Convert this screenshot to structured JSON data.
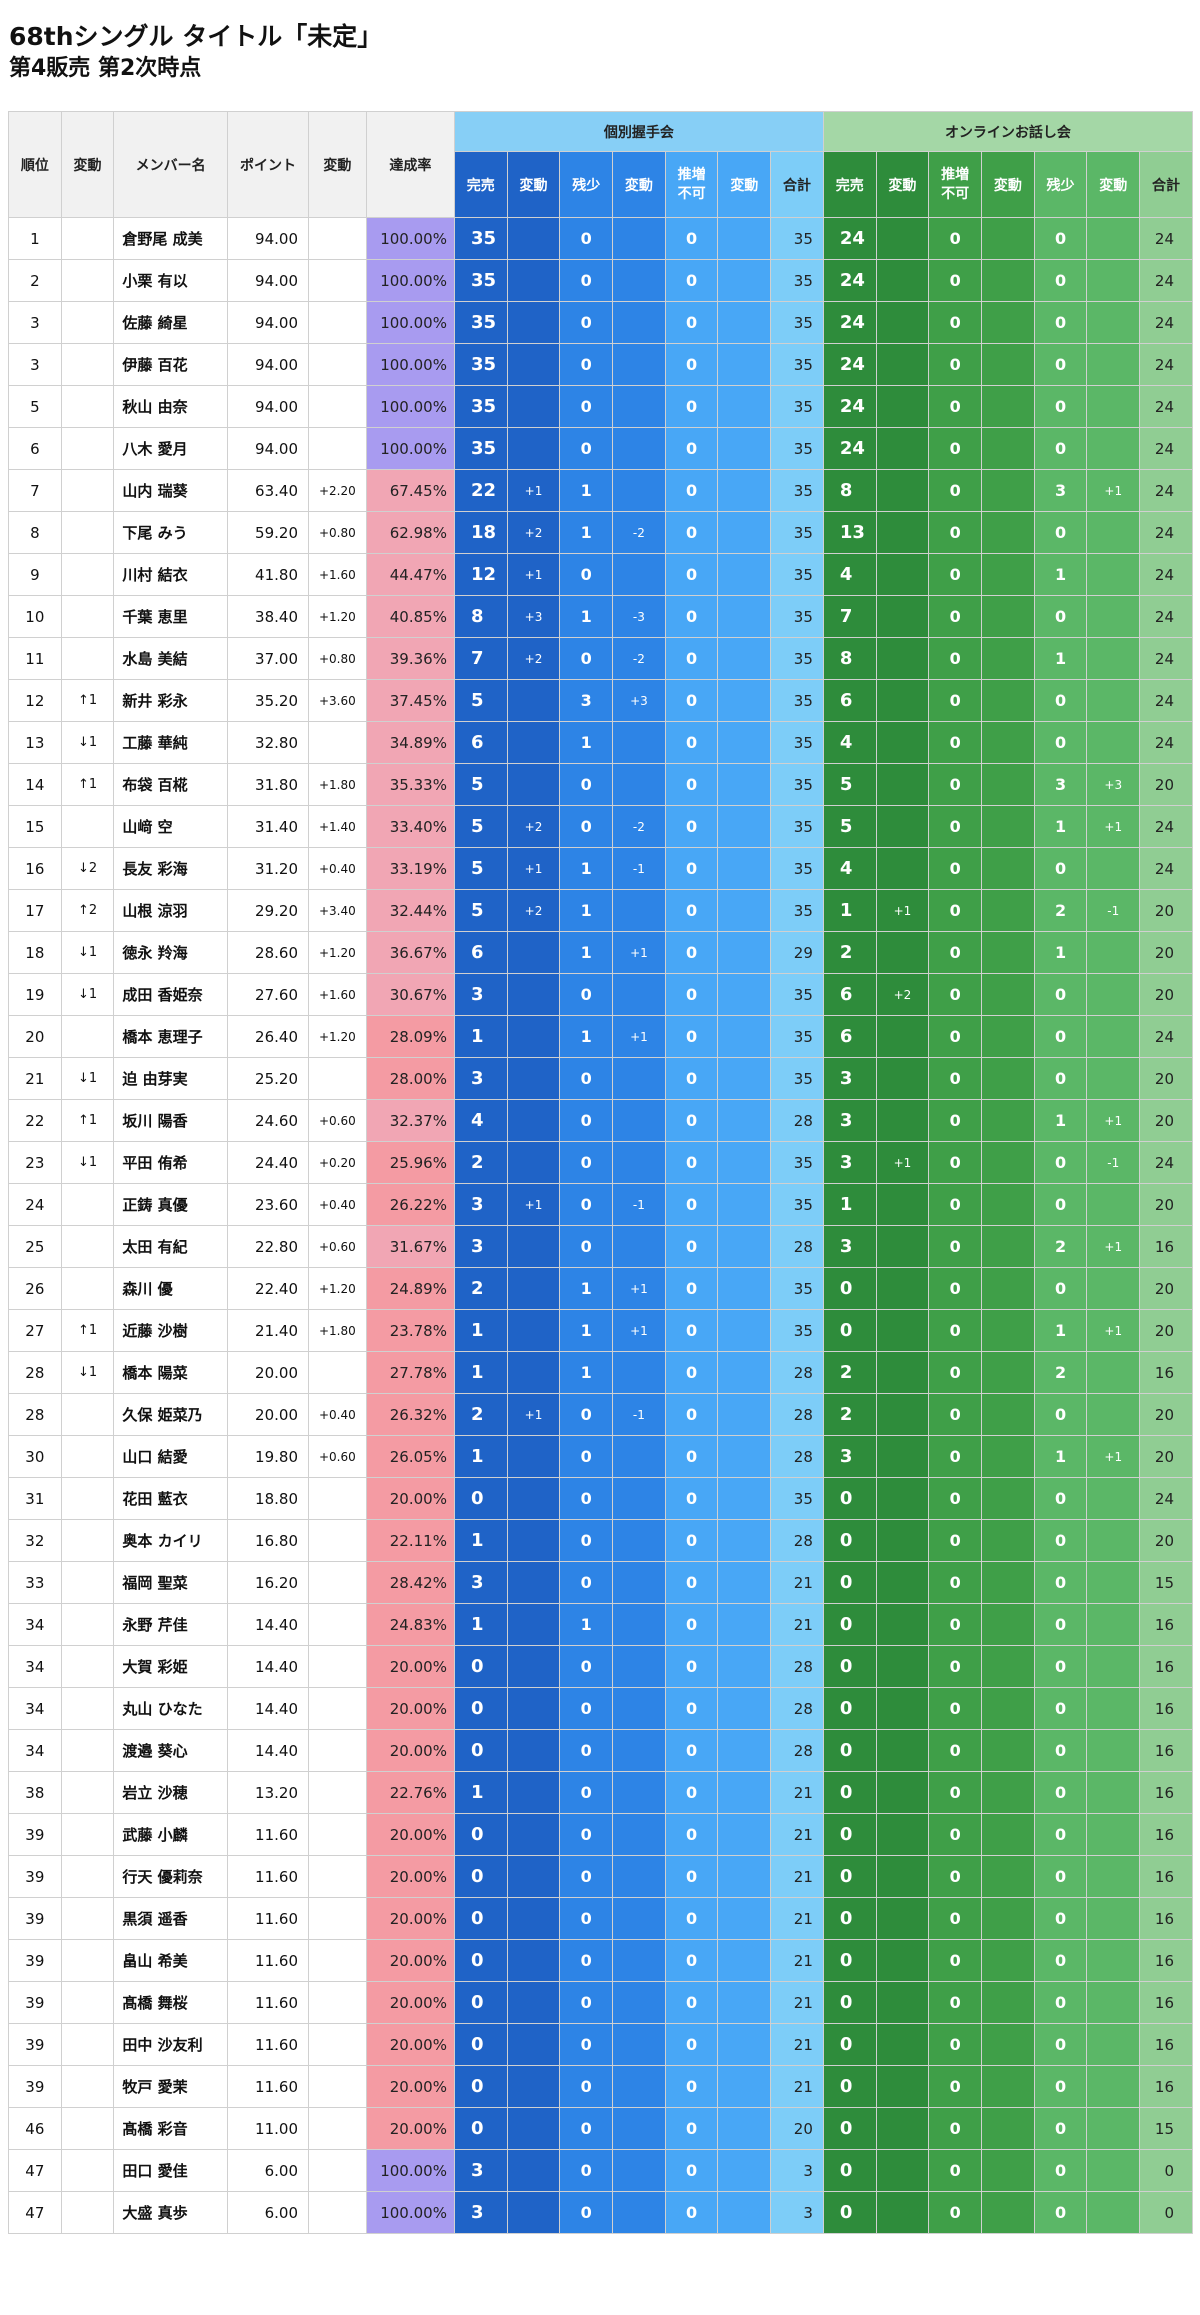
{
  "page": {
    "title": "68thシングル タイトル「未定」",
    "subtitle": "第4販売 第2次時点"
  },
  "table": {
    "groups": {
      "handshake": "個別握手会",
      "online": "オンラインお話し会"
    },
    "headers": {
      "rank": "順位",
      "rank_change": "変動",
      "member": "メンバー名",
      "points": "ポイント",
      "points_change": "変動",
      "rate": "達成率",
      "hs_sold": "完売",
      "hs_sold_change": "変動",
      "hs_few": "残少",
      "hs_few_change": "変動",
      "hs_na": "推増\n不可",
      "hs_na_change": "変動",
      "hs_total": "合計",
      "ol_sold": "完売",
      "ol_sold_change": "変動",
      "ol_na": "推増\n不可",
      "ol_na_change": "変動",
      "ol_few": "残少",
      "ol_few_change": "変動",
      "ol_total": "合計"
    },
    "colors": {
      "hs_dark": "#1f63c7",
      "hs_mid": "#2d84e6",
      "hs_light": "#48a7f6",
      "hs_total": "#7dcdf8",
      "ol_dark": "#2e8c3b",
      "ol_mid": "#3f9f48",
      "ol_light": "#5bb767",
      "ol_total": "#90cd93",
      "rate_full": "#a89bf0",
      "rate_mid": "#f1a6b4",
      "rate_low": "#f49ba3"
    },
    "columns": [
      "rank",
      "rank_change",
      "member",
      "points",
      "points_change",
      "rate",
      "hs_sold",
      "hs_sold_change",
      "hs_few",
      "hs_few_change",
      "hs_na",
      "hs_na_change",
      "hs_total",
      "ol_sold",
      "ol_sold_change",
      "ol_na",
      "ol_na_change",
      "ol_few",
      "ol_few_change",
      "ol_total"
    ],
    "rows": [
      [
        "1",
        "",
        "倉野尾 成美",
        "94.00",
        "",
        "100.00%",
        "35",
        "",
        "0",
        "",
        "0",
        "",
        "35",
        "24",
        "",
        "0",
        "",
        "0",
        "",
        "24"
      ],
      [
        "2",
        "",
        "小栗 有以",
        "94.00",
        "",
        "100.00%",
        "35",
        "",
        "0",
        "",
        "0",
        "",
        "35",
        "24",
        "",
        "0",
        "",
        "0",
        "",
        "24"
      ],
      [
        "3",
        "",
        "佐藤 綺星",
        "94.00",
        "",
        "100.00%",
        "35",
        "",
        "0",
        "",
        "0",
        "",
        "35",
        "24",
        "",
        "0",
        "",
        "0",
        "",
        "24"
      ],
      [
        "3",
        "",
        "伊藤 百花",
        "94.00",
        "",
        "100.00%",
        "35",
        "",
        "0",
        "",
        "0",
        "",
        "35",
        "24",
        "",
        "0",
        "",
        "0",
        "",
        "24"
      ],
      [
        "5",
        "",
        "秋山 由奈",
        "94.00",
        "",
        "100.00%",
        "35",
        "",
        "0",
        "",
        "0",
        "",
        "35",
        "24",
        "",
        "0",
        "",
        "0",
        "",
        "24"
      ],
      [
        "6",
        "",
        "八木 愛月",
        "94.00",
        "",
        "100.00%",
        "35",
        "",
        "0",
        "",
        "0",
        "",
        "35",
        "24",
        "",
        "0",
        "",
        "0",
        "",
        "24"
      ],
      [
        "7",
        "",
        "山内 瑞葵",
        "63.40",
        "+2.20",
        "67.45%",
        "22",
        "+1",
        "1",
        "",
        "0",
        "",
        "35",
        "8",
        "",
        "0",
        "",
        "3",
        "+1",
        "24"
      ],
      [
        "8",
        "",
        "下尾 みう",
        "59.20",
        "+0.80",
        "62.98%",
        "18",
        "+2",
        "1",
        "-2",
        "0",
        "",
        "35",
        "13",
        "",
        "0",
        "",
        "0",
        "",
        "24"
      ],
      [
        "9",
        "",
        "川村 結衣",
        "41.80",
        "+1.60",
        "44.47%",
        "12",
        "+1",
        "0",
        "",
        "0",
        "",
        "35",
        "4",
        "",
        "0",
        "",
        "1",
        "",
        "24"
      ],
      [
        "10",
        "",
        "千葉 恵里",
        "38.40",
        "+1.20",
        "40.85%",
        "8",
        "+3",
        "1",
        "-3",
        "0",
        "",
        "35",
        "7",
        "",
        "0",
        "",
        "0",
        "",
        "24"
      ],
      [
        "11",
        "",
        "水島 美結",
        "37.00",
        "+0.80",
        "39.36%",
        "7",
        "+2",
        "0",
        "-2",
        "0",
        "",
        "35",
        "8",
        "",
        "0",
        "",
        "1",
        "",
        "24"
      ],
      [
        "12",
        "↑1",
        "新井 彩永",
        "35.20",
        "+3.60",
        "37.45%",
        "5",
        "",
        "3",
        "+3",
        "0",
        "",
        "35",
        "6",
        "",
        "0",
        "",
        "0",
        "",
        "24"
      ],
      [
        "13",
        "↓1",
        "工藤 華純",
        "32.80",
        "",
        "34.89%",
        "6",
        "",
        "1",
        "",
        "0",
        "",
        "35",
        "4",
        "",
        "0",
        "",
        "0",
        "",
        "24"
      ],
      [
        "14",
        "↑1",
        "布袋 百椛",
        "31.80",
        "+1.80",
        "35.33%",
        "5",
        "",
        "0",
        "",
        "0",
        "",
        "35",
        "5",
        "",
        "0",
        "",
        "3",
        "+3",
        "20"
      ],
      [
        "15",
        "",
        "山﨑 空",
        "31.40",
        "+1.40",
        "33.40%",
        "5",
        "+2",
        "0",
        "-2",
        "0",
        "",
        "35",
        "5",
        "",
        "0",
        "",
        "1",
        "+1",
        "24"
      ],
      [
        "16",
        "↓2",
        "長友 彩海",
        "31.20",
        "+0.40",
        "33.19%",
        "5",
        "+1",
        "1",
        "-1",
        "0",
        "",
        "35",
        "4",
        "",
        "0",
        "",
        "0",
        "",
        "24"
      ],
      [
        "17",
        "↑2",
        "山根 涼羽",
        "29.20",
        "+3.40",
        "32.44%",
        "5",
        "+2",
        "1",
        "",
        "0",
        "",
        "35",
        "1",
        "+1",
        "0",
        "",
        "2",
        "-1",
        "20"
      ],
      [
        "18",
        "↓1",
        "徳永 羚海",
        "28.60",
        "+1.20",
        "36.67%",
        "6",
        "",
        "1",
        "+1",
        "0",
        "",
        "29",
        "2",
        "",
        "0",
        "",
        "1",
        "",
        "20"
      ],
      [
        "19",
        "↓1",
        "成田 香姫奈",
        "27.60",
        "+1.60",
        "30.67%",
        "3",
        "",
        "0",
        "",
        "0",
        "",
        "35",
        "6",
        "+2",
        "0",
        "",
        "0",
        "",
        "20"
      ],
      [
        "20",
        "",
        "橋本 恵理子",
        "26.40",
        "+1.20",
        "28.09%",
        "1",
        "",
        "1",
        "+1",
        "0",
        "",
        "35",
        "6",
        "",
        "0",
        "",
        "0",
        "",
        "24"
      ],
      [
        "21",
        "↓1",
        "迫 由芽実",
        "25.20",
        "",
        "28.00%",
        "3",
        "",
        "0",
        "",
        "0",
        "",
        "35",
        "3",
        "",
        "0",
        "",
        "0",
        "",
        "20"
      ],
      [
        "22",
        "↑1",
        "坂川 陽香",
        "24.60",
        "+0.60",
        "32.37%",
        "4",
        "",
        "0",
        "",
        "0",
        "",
        "28",
        "3",
        "",
        "0",
        "",
        "1",
        "+1",
        "20"
      ],
      [
        "23",
        "↓1",
        "平田 侑希",
        "24.40",
        "+0.20",
        "25.96%",
        "2",
        "",
        "0",
        "",
        "0",
        "",
        "35",
        "3",
        "+1",
        "0",
        "",
        "0",
        "-1",
        "24"
      ],
      [
        "24",
        "",
        "正鋳 真優",
        "23.60",
        "+0.40",
        "26.22%",
        "3",
        "+1",
        "0",
        "-1",
        "0",
        "",
        "35",
        "1",
        "",
        "0",
        "",
        "0",
        "",
        "20"
      ],
      [
        "25",
        "",
        "太田 有紀",
        "22.80",
        "+0.60",
        "31.67%",
        "3",
        "",
        "0",
        "",
        "0",
        "",
        "28",
        "3",
        "",
        "0",
        "",
        "2",
        "+1",
        "16"
      ],
      [
        "26",
        "",
        "森川 優",
        "22.40",
        "+1.20",
        "24.89%",
        "2",
        "",
        "1",
        "+1",
        "0",
        "",
        "35",
        "0",
        "",
        "0",
        "",
        "0",
        "",
        "20"
      ],
      [
        "27",
        "↑1",
        "近藤 沙樹",
        "21.40",
        "+1.80",
        "23.78%",
        "1",
        "",
        "1",
        "+1",
        "0",
        "",
        "35",
        "0",
        "",
        "0",
        "",
        "1",
        "+1",
        "20"
      ],
      [
        "28",
        "↓1",
        "橋本 陽菜",
        "20.00",
        "",
        "27.78%",
        "1",
        "",
        "1",
        "",
        "0",
        "",
        "28",
        "2",
        "",
        "0",
        "",
        "2",
        "",
        "16"
      ],
      [
        "28",
        "",
        "久保 姫菜乃",
        "20.00",
        "+0.40",
        "26.32%",
        "2",
        "+1",
        "0",
        "-1",
        "0",
        "",
        "28",
        "2",
        "",
        "0",
        "",
        "0",
        "",
        "20"
      ],
      [
        "30",
        "",
        "山口 結愛",
        "19.80",
        "+0.60",
        "26.05%",
        "1",
        "",
        "0",
        "",
        "0",
        "",
        "28",
        "3",
        "",
        "0",
        "",
        "1",
        "+1",
        "20"
      ],
      [
        "31",
        "",
        "花田 藍衣",
        "18.80",
        "",
        "20.00%",
        "0",
        "",
        "0",
        "",
        "0",
        "",
        "35",
        "0",
        "",
        "0",
        "",
        "0",
        "",
        "24"
      ],
      [
        "32",
        "",
        "奥本 カイリ",
        "16.80",
        "",
        "22.11%",
        "1",
        "",
        "0",
        "",
        "0",
        "",
        "28",
        "0",
        "",
        "0",
        "",
        "0",
        "",
        "20"
      ],
      [
        "33",
        "",
        "福岡 聖菜",
        "16.20",
        "",
        "28.42%",
        "3",
        "",
        "0",
        "",
        "0",
        "",
        "21",
        "0",
        "",
        "0",
        "",
        "0",
        "",
        "15"
      ],
      [
        "34",
        "",
        "永野 芹佳",
        "14.40",
        "",
        "24.83%",
        "1",
        "",
        "1",
        "",
        "0",
        "",
        "21",
        "0",
        "",
        "0",
        "",
        "0",
        "",
        "16"
      ],
      [
        "34",
        "",
        "大賀 彩姫",
        "14.40",
        "",
        "20.00%",
        "0",
        "",
        "0",
        "",
        "0",
        "",
        "28",
        "0",
        "",
        "0",
        "",
        "0",
        "",
        "16"
      ],
      [
        "34",
        "",
        "丸山 ひなた",
        "14.40",
        "",
        "20.00%",
        "0",
        "",
        "0",
        "",
        "0",
        "",
        "28",
        "0",
        "",
        "0",
        "",
        "0",
        "",
        "16"
      ],
      [
        "34",
        "",
        "渡邉 葵心",
        "14.40",
        "",
        "20.00%",
        "0",
        "",
        "0",
        "",
        "0",
        "",
        "28",
        "0",
        "",
        "0",
        "",
        "0",
        "",
        "16"
      ],
      [
        "38",
        "",
        "岩立 沙穂",
        "13.20",
        "",
        "22.76%",
        "1",
        "",
        "0",
        "",
        "0",
        "",
        "21",
        "0",
        "",
        "0",
        "",
        "0",
        "",
        "16"
      ],
      [
        "39",
        "",
        "武藤 小麟",
        "11.60",
        "",
        "20.00%",
        "0",
        "",
        "0",
        "",
        "0",
        "",
        "21",
        "0",
        "",
        "0",
        "",
        "0",
        "",
        "16"
      ],
      [
        "39",
        "",
        "行天 優莉奈",
        "11.60",
        "",
        "20.00%",
        "0",
        "",
        "0",
        "",
        "0",
        "",
        "21",
        "0",
        "",
        "0",
        "",
        "0",
        "",
        "16"
      ],
      [
        "39",
        "",
        "黒須 遥香",
        "11.60",
        "",
        "20.00%",
        "0",
        "",
        "0",
        "",
        "0",
        "",
        "21",
        "0",
        "",
        "0",
        "",
        "0",
        "",
        "16"
      ],
      [
        "39",
        "",
        "畠山 希美",
        "11.60",
        "",
        "20.00%",
        "0",
        "",
        "0",
        "",
        "0",
        "",
        "21",
        "0",
        "",
        "0",
        "",
        "0",
        "",
        "16"
      ],
      [
        "39",
        "",
        "髙橋 舞桜",
        "11.60",
        "",
        "20.00%",
        "0",
        "",
        "0",
        "",
        "0",
        "",
        "21",
        "0",
        "",
        "0",
        "",
        "0",
        "",
        "16"
      ],
      [
        "39",
        "",
        "田中 沙友利",
        "11.60",
        "",
        "20.00%",
        "0",
        "",
        "0",
        "",
        "0",
        "",
        "21",
        "0",
        "",
        "0",
        "",
        "0",
        "",
        "16"
      ],
      [
        "39",
        "",
        "牧戸 愛茉",
        "11.60",
        "",
        "20.00%",
        "0",
        "",
        "0",
        "",
        "0",
        "",
        "21",
        "0",
        "",
        "0",
        "",
        "0",
        "",
        "16"
      ],
      [
        "46",
        "",
        "髙橋 彩音",
        "11.00",
        "",
        "20.00%",
        "0",
        "",
        "0",
        "",
        "0",
        "",
        "20",
        "0",
        "",
        "0",
        "",
        "0",
        "",
        "15"
      ],
      [
        "47",
        "",
        "田口 愛佳",
        "6.00",
        "",
        "100.00%",
        "3",
        "",
        "0",
        "",
        "0",
        "",
        "3",
        "0",
        "",
        "0",
        "",
        "0",
        "",
        "0"
      ],
      [
        "47",
        "",
        "大盛 真歩",
        "6.00",
        "",
        "100.00%",
        "3",
        "",
        "0",
        "",
        "0",
        "",
        "3",
        "0",
        "",
        "0",
        "",
        "0",
        "",
        "0"
      ]
    ]
  }
}
